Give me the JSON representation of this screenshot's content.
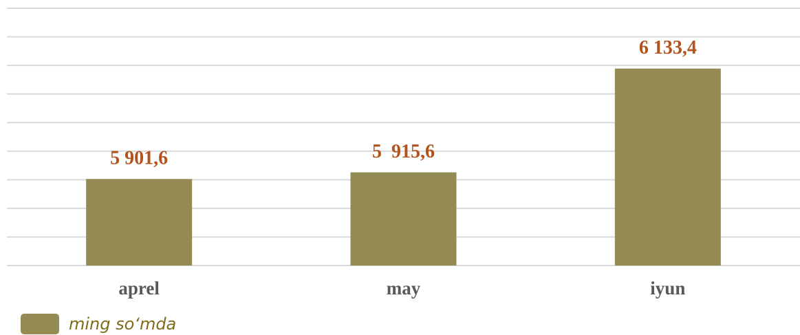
{
  "chart_data": {
    "type": "bar",
    "categories": [
      "aprel",
      "may",
      "iyun"
    ],
    "series": [
      {
        "name": "ming so‘mda",
        "color": "#948a54",
        "values": [
          5901.6,
          5915.6,
          6133.4
        ],
        "value_labels": [
          "5 901,6",
          "5  915,6",
          "6 133,4"
        ]
      }
    ],
    "ylim": [
      5720,
      6260
    ],
    "yticks": [
      5720,
      5780,
      5840,
      5900,
      5960,
      6020,
      6080,
      6140,
      6200,
      6260
    ],
    "grid": true,
    "legend": "bottom-left",
    "value_label_color": "#b3541e"
  }
}
